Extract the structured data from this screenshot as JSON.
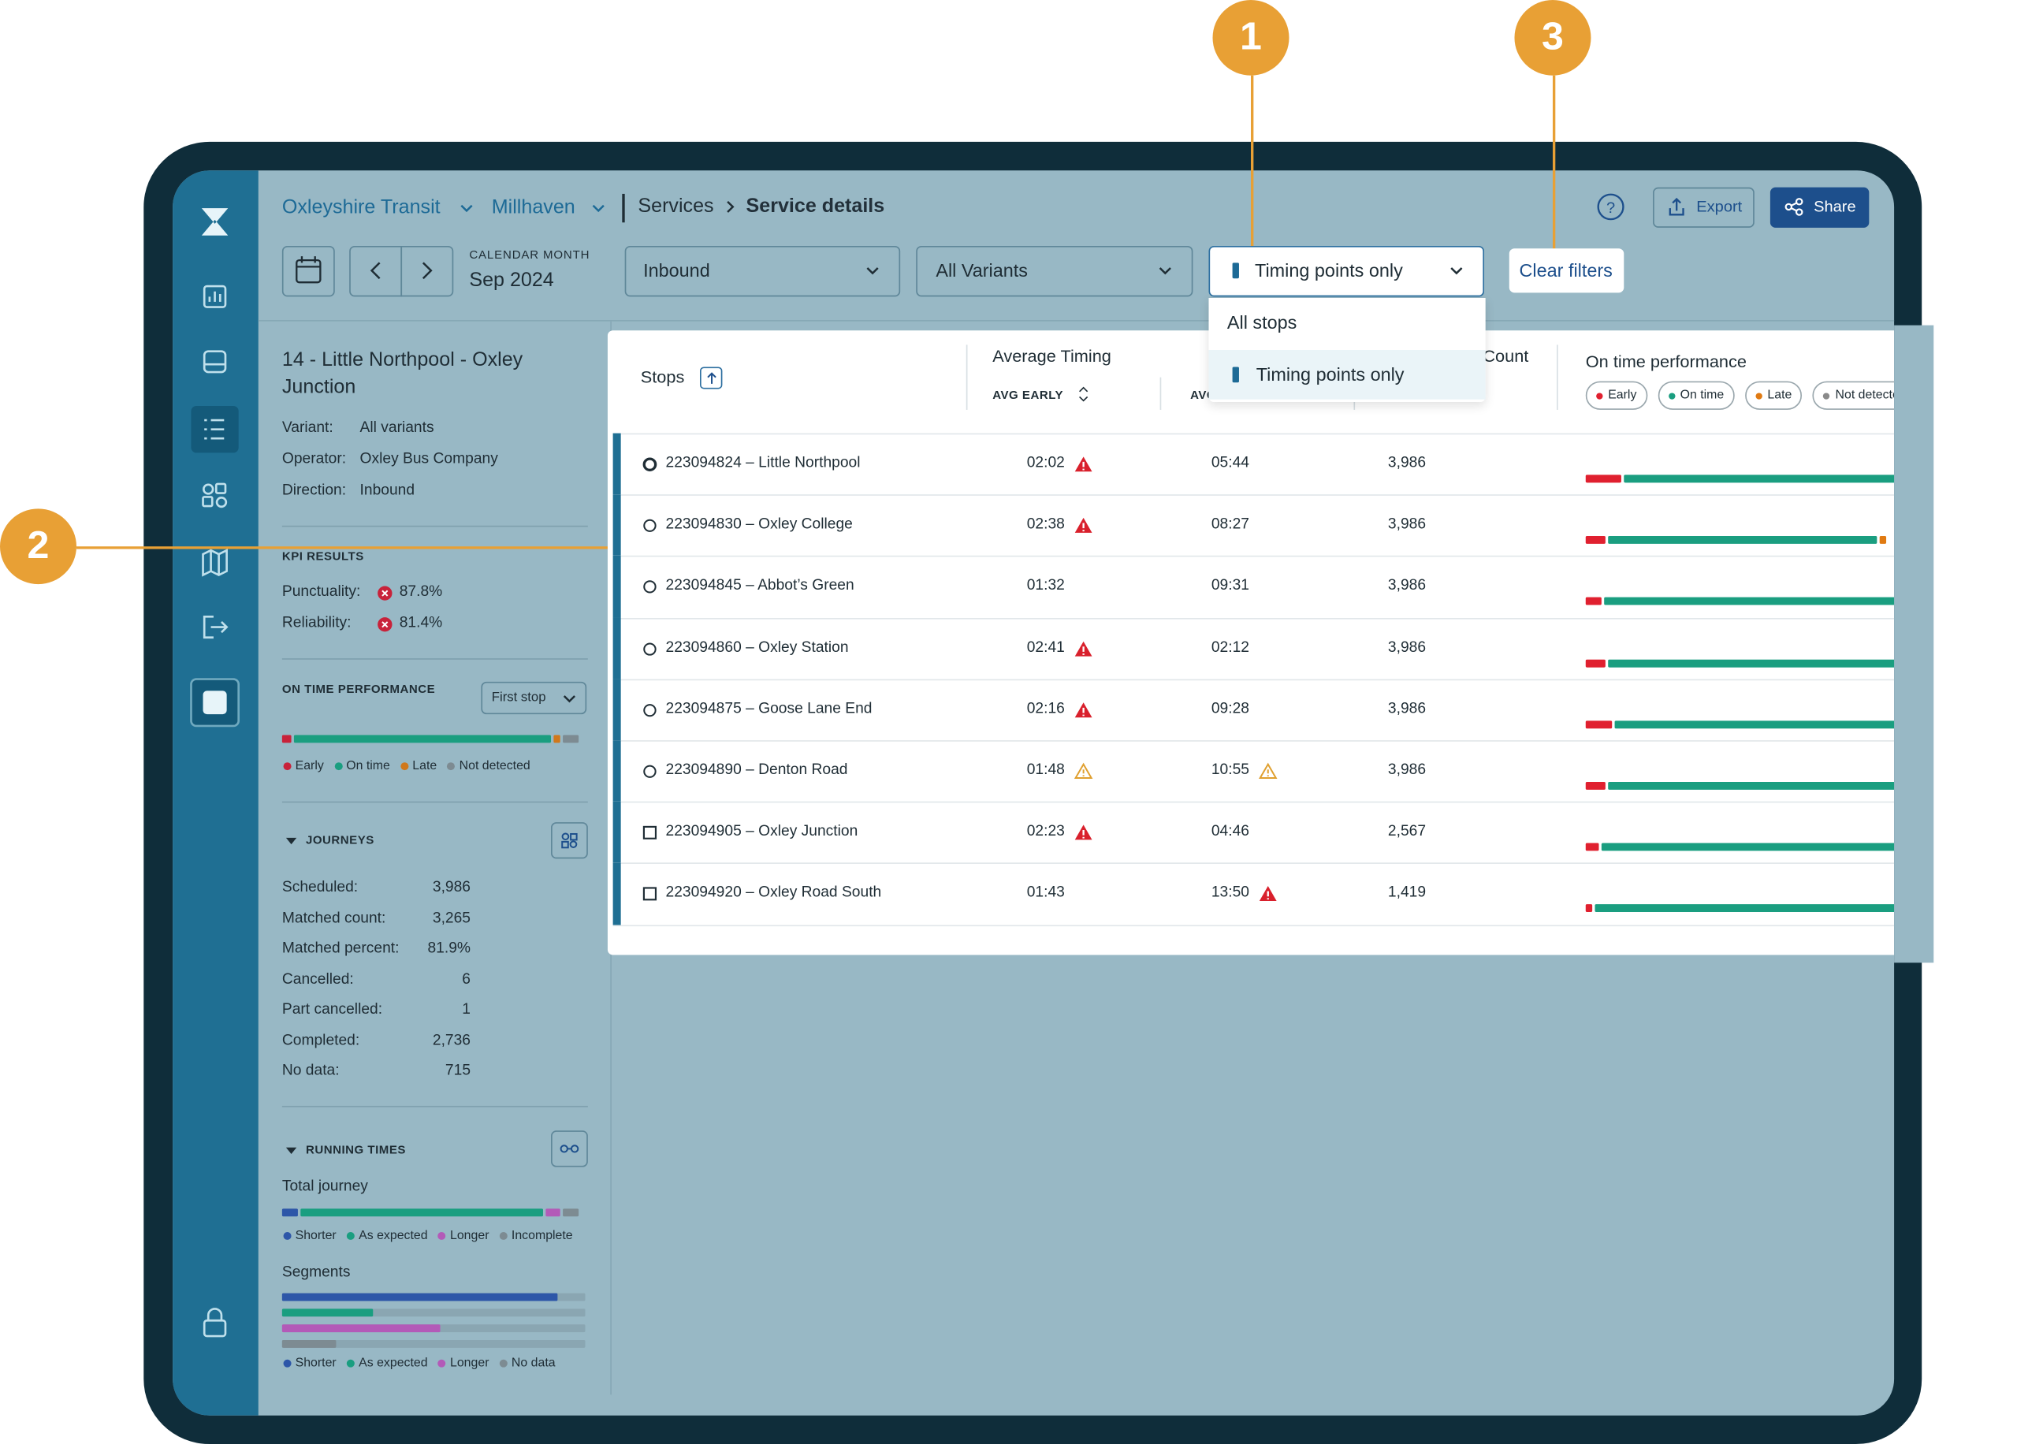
{
  "callouts": [
    "1",
    "2",
    "3"
  ],
  "breadcrumb": {
    "org": "Oxleyshire Transit",
    "area": "Millhaven",
    "section": "Services",
    "page": "Service details"
  },
  "toolbar": {
    "month_label": "CALENDAR MONTH",
    "month": "Sep 2024",
    "direction": "Inbound",
    "variant": "All Variants",
    "stop_filter": "Timing points only",
    "clear": "Clear filters",
    "export": "Export",
    "share": "Share"
  },
  "dropdown": {
    "options": [
      "All stops",
      "Timing points only"
    ]
  },
  "service": {
    "title": "14 - Little Northpool - Oxley Junction",
    "details": [
      [
        "Variant:",
        "All variants"
      ],
      [
        "Operator:",
        "Oxley Bus Company"
      ],
      [
        "Direction:",
        "Inbound"
      ]
    ]
  },
  "kpi": {
    "heading": "KPI RESULTS",
    "items": [
      [
        "Punctuality:",
        "87.8%"
      ],
      [
        "Reliability:",
        "81.4%"
      ]
    ]
  },
  "otp": {
    "heading": "ON TIME PERFORMANCE",
    "select": "First stop",
    "legend": [
      "Early",
      "On time",
      "Late",
      "Not detected"
    ],
    "colors": [
      "#c8223a",
      "#1a9e80",
      "#d0781c",
      "#7d8b92"
    ],
    "values": [
      4,
      85,
      3,
      6
    ]
  },
  "journeys": {
    "heading": "JOURNEYS",
    "items": [
      [
        "Scheduled:",
        "3,986"
      ],
      [
        "Matched count:",
        "3,265"
      ],
      [
        "Matched percent:",
        "81.9%"
      ],
      [
        "Cancelled:",
        "6"
      ],
      [
        "Part cancelled:",
        "1"
      ],
      [
        "Completed:",
        "2,736"
      ],
      [
        "No data:",
        "715"
      ]
    ]
  },
  "running": {
    "heading": "RUNNING TIMES",
    "total_label": "Total journey",
    "total_legend": [
      "Shorter",
      "As expected",
      "Longer",
      "Incomplete"
    ],
    "total_colors": [
      "#2d56a8",
      "#1a9e80",
      "#b35ab8",
      "#7d8b92"
    ],
    "total_values": [
      6,
      80,
      6,
      6
    ],
    "segments_label": "Segments",
    "segments_legend": [
      "Shorter",
      "As expected",
      "Longer",
      "No data"
    ],
    "segments_colors": [
      "#2d56a8",
      "#1a9e80",
      "#b35ab8",
      "#7d8b92"
    ],
    "segments_values": [
      91,
      30,
      52,
      18
    ]
  },
  "table": {
    "headers": {
      "stops": "Stops",
      "timing": "Average Timing",
      "early": "AVG EARLY",
      "late": "AVG LATE",
      "count": "Count",
      "otp": "On time performance"
    },
    "otp_legend": [
      "Early",
      "On time",
      "Late",
      "Not detected"
    ],
    "otp_colors": [
      "#e0202f",
      "#1a9e80",
      "#e07a12",
      "#8a8a8a"
    ],
    "rows": [
      {
        "stop": "223094824 – Little Northpool",
        "icon": "circle-bold",
        "early": "02:02",
        "early_flag": "alert",
        "late": "05:44",
        "count": "3,986",
        "otp": [
          12,
          88,
          0
        ]
      },
      {
        "stop": "223094830 – Oxley College",
        "icon": "circle",
        "early": "02:38",
        "early_flag": "alert",
        "late": "08:27",
        "count": "3,986",
        "otp": [
          7,
          86,
          3
        ]
      },
      {
        "stop": "223094845 – Abbot’s Green",
        "icon": "circle",
        "early": "01:32",
        "late": "09:31",
        "count": "3,986",
        "otp": [
          6,
          94,
          0
        ]
      },
      {
        "stop": "223094860 – Oxley Station",
        "icon": "circle",
        "early": "02:41",
        "early_flag": "alert",
        "late": "02:12",
        "count": "3,986",
        "otp": [
          7,
          93,
          0
        ]
      },
      {
        "stop": "223094875 – Goose Lane End",
        "icon": "circle",
        "early": "02:16",
        "early_flag": "alert",
        "late": "09:28",
        "count": "3,986",
        "otp": [
          9,
          91,
          0
        ]
      },
      {
        "stop": "223094890 – Denton Road",
        "icon": "circle",
        "early": "01:48",
        "early_flag": "warn",
        "late": "10:55",
        "late_flag": "warn",
        "count": "3,986",
        "otp": [
          7,
          93,
          0
        ]
      },
      {
        "stop": "223094905 – Oxley Junction",
        "icon": "square",
        "early": "02:23",
        "early_flag": "alert",
        "late": "04:46",
        "count": "2,567",
        "otp": [
          5,
          95,
          0
        ]
      },
      {
        "stop": "223094920 – Oxley Road South",
        "icon": "square",
        "early": "01:43",
        "late": "13:50",
        "late_flag": "alert",
        "count": "1,419",
        "otp": [
          3,
          97,
          0
        ]
      }
    ]
  }
}
